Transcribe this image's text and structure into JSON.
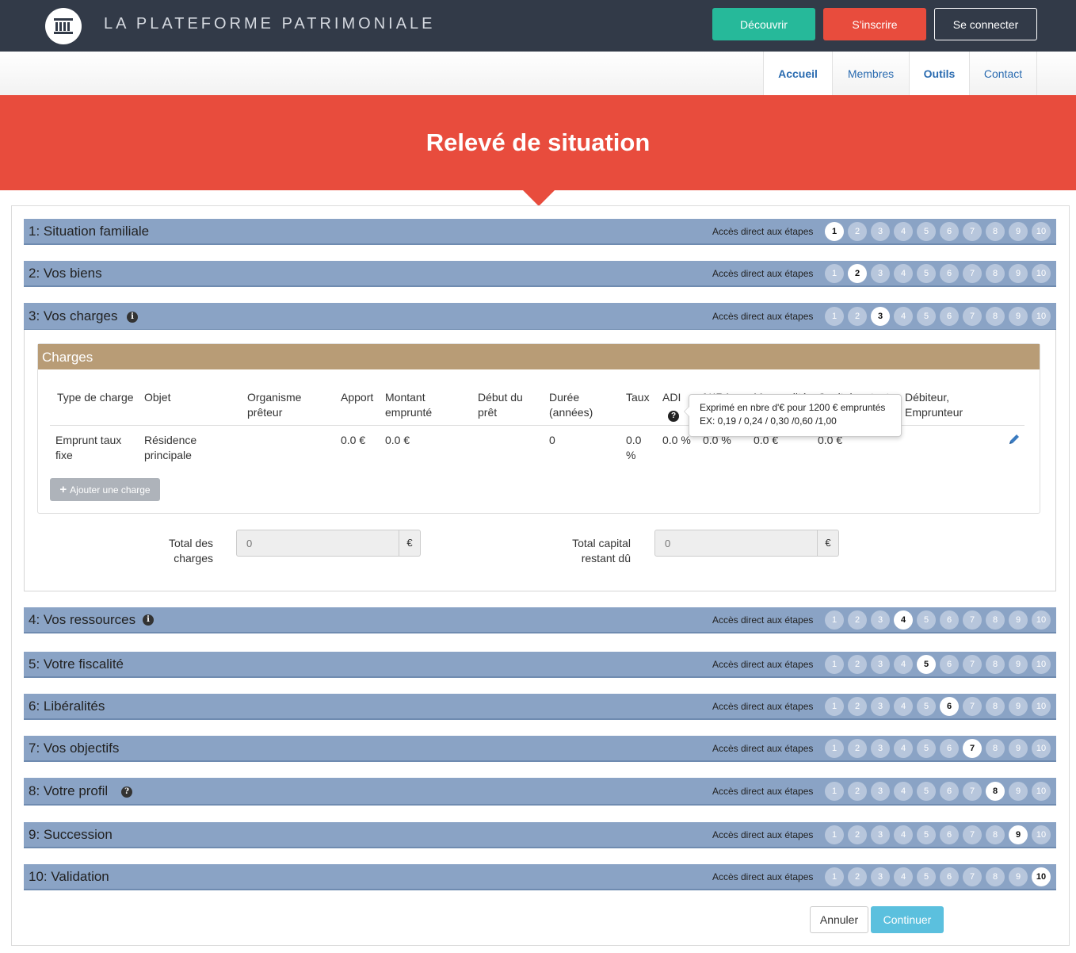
{
  "header": {
    "site_title": "LA PLATEFORME PATRIMONIALE",
    "logo_icon": "bank-building-icon",
    "buttons": {
      "decouvrir": "Découvrir",
      "inscrire": "S'inscrire",
      "connecter": "Se connecter"
    },
    "colors": {
      "topbar": "#323a48",
      "green": "#26b99a",
      "red": "#e84c3d"
    }
  },
  "nav": {
    "items": [
      {
        "label": "Accueil"
      },
      {
        "label": "Membres"
      },
      {
        "label": "Outils"
      },
      {
        "label": "Contact"
      }
    ]
  },
  "hero": {
    "title": "Relevé de situation"
  },
  "steps": {
    "acces_label": "Accès direct aux étapes",
    "numbers": [
      "1",
      "2",
      "3",
      "4",
      "5",
      "6",
      "7",
      "8",
      "9",
      "10"
    ],
    "items": [
      {
        "title": "1: Situation familiale",
        "current": 1
      },
      {
        "title": "2: Vos biens",
        "current": 2
      },
      {
        "title": "3: Vos charges",
        "current": 3,
        "icon": "info-icon"
      },
      {
        "title": "4: Vos ressources",
        "current": 4,
        "icon": "info-icon"
      },
      {
        "title": "5: Votre fiscalité",
        "current": 5
      },
      {
        "title": "6: Libéralités",
        "current": 6
      },
      {
        "title": "7: Vos objectifs",
        "current": 7
      },
      {
        "title": "8: Votre profil",
        "current": 8,
        "icon": "question-icon"
      },
      {
        "title": "9: Succession",
        "current": 9
      },
      {
        "title": "10: Validation",
        "current": 10
      }
    ]
  },
  "charges": {
    "panel_title": "Charges",
    "columns": {
      "type": "Type de charge",
      "objet": "Objet",
      "organisme_1": "Organisme",
      "organisme_2": "prêteur",
      "apport": "Apport",
      "montant_1": "Montant",
      "montant_2": "emprunté",
      "debut_1": "Début du",
      "debut_2": "prêt",
      "duree_1": "Durée",
      "duree_2": "(années)",
      "taux": "Taux",
      "adi": "ADI",
      "ira": "%IRA",
      "mensualite": "Mensualité",
      "capital": "Capital restant",
      "debiteur_1": "Débiteur,",
      "debiteur_2": "Emprunteur"
    },
    "row": {
      "type_1": "Emprunt taux",
      "type_2": "fixe",
      "objet_1": "Résidence",
      "objet_2": "principale",
      "apport": "0.0 €",
      "montant": "0.0 €",
      "duree": "0",
      "taux_1": "0.0",
      "taux_2": "%",
      "adi": "0.0 %",
      "ira": "0.0 %",
      "mensualite": "0.0 €",
      "capital": "0.0 €"
    },
    "add_button": "Ajouter une charge",
    "tooltip_line1": "Exprimé en nbre d'€ pour 1200 € empruntés",
    "tooltip_line2": "EX: 0,19 / 0,24 / 0,30 /0,60 /1,00"
  },
  "totals": {
    "charges_label_1": "Total des",
    "charges_label_2": "charges",
    "charges_placeholder": "0",
    "capital_label_1": "Total capital",
    "capital_label_2": "restant dû",
    "capital_placeholder": "0",
    "currency": "€"
  },
  "footer": {
    "annuler": "Annuler",
    "continuer": "Continuer"
  }
}
